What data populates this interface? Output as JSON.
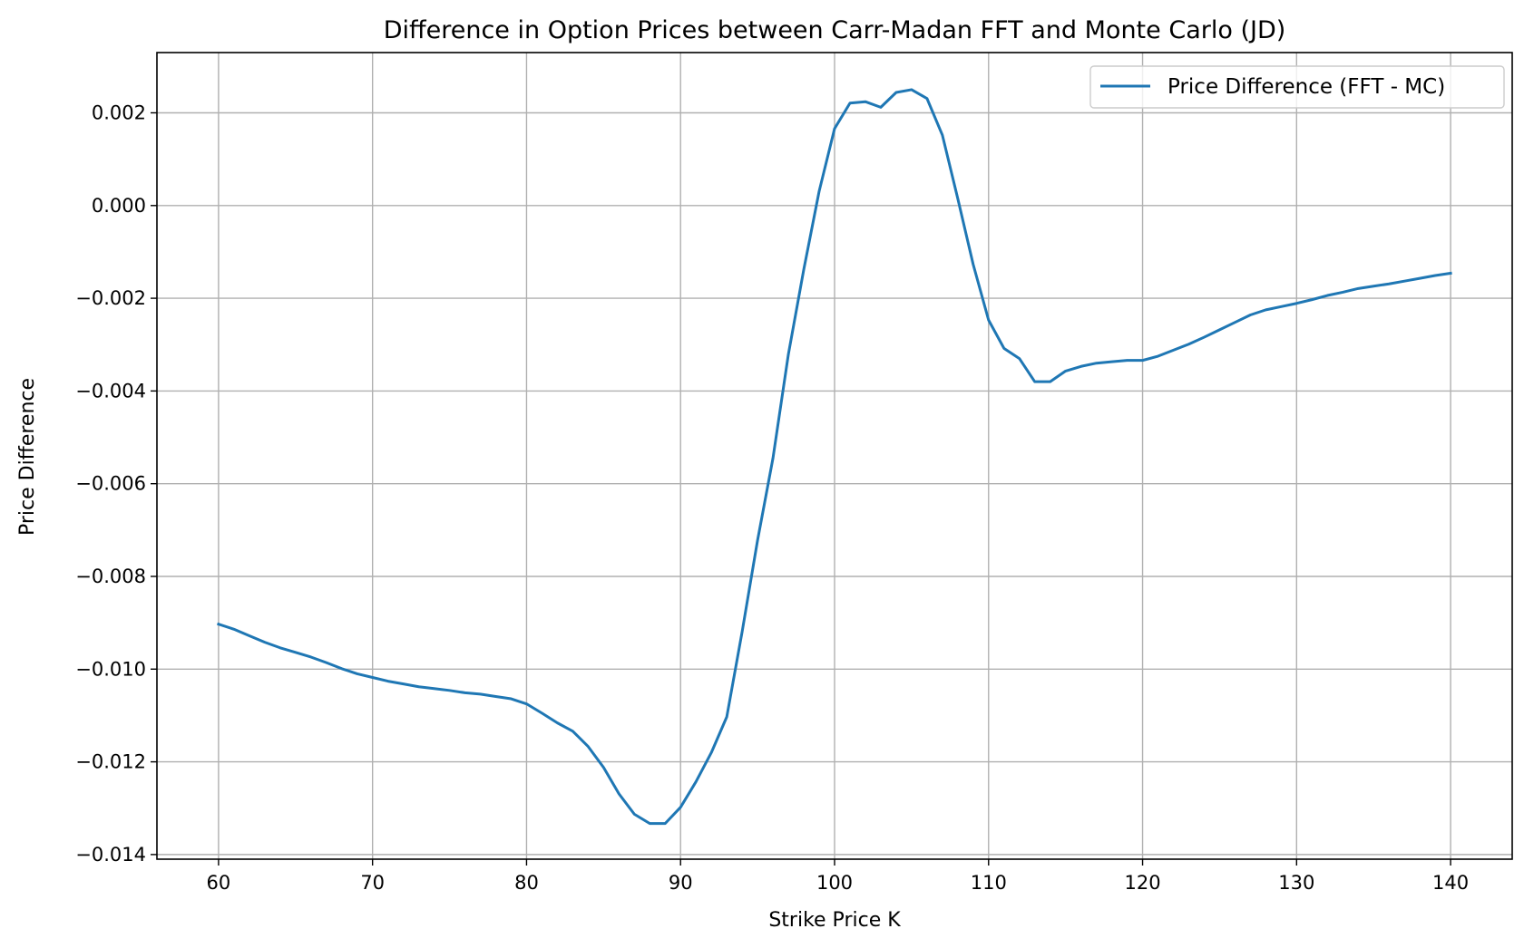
{
  "chart_data": {
    "type": "line",
    "title": "Difference in Option Prices between Carr-Madan FFT and Monte Carlo (JD)",
    "xlabel": "Strike Price K",
    "ylabel": "Price Difference",
    "xlim": [
      56,
      144
    ],
    "ylim": [
      -0.0141,
      0.0033
    ],
    "grid": true,
    "legend_position": "top-right",
    "xticks": [
      60,
      70,
      80,
      90,
      100,
      110,
      120,
      130,
      140
    ],
    "xtick_labels": [
      "60",
      "70",
      "80",
      "90",
      "100",
      "110",
      "120",
      "130",
      "140"
    ],
    "yticks": [
      0.002,
      0.0,
      -0.002,
      -0.004,
      -0.006,
      -0.008,
      -0.01,
      -0.012,
      -0.014
    ],
    "ytick_labels": [
      "0.002",
      "0.000",
      "−0.002",
      "−0.004",
      "−0.006",
      "−0.008",
      "−0.010",
      "−0.012",
      "−0.014"
    ],
    "series": [
      {
        "name": "Price Difference (FFT - MC)",
        "color": "#1f77b4",
        "x": [
          60,
          61,
          62,
          63,
          64,
          65,
          66,
          67,
          68,
          69,
          70,
          71,
          72,
          73,
          74,
          75,
          76,
          77,
          78,
          79,
          80,
          81,
          82,
          83,
          84,
          85,
          86,
          87,
          88,
          89,
          90,
          91,
          92,
          93,
          94,
          95,
          96,
          97,
          98,
          99,
          100,
          101,
          102,
          103,
          104,
          105,
          106,
          107,
          108,
          109,
          110,
          111,
          112,
          113,
          114,
          115,
          116,
          117,
          118,
          119,
          120,
          121,
          122,
          123,
          124,
          125,
          126,
          127,
          128,
          129,
          130,
          131,
          132,
          133,
          134,
          135,
          136,
          137,
          138,
          139,
          140
        ],
        "y": [
          -0.00903,
          -0.00914,
          -0.00928,
          -0.00942,
          -0.00954,
          -0.00964,
          -0.00974,
          -0.00986,
          -0.00999,
          -0.0101,
          -0.01018,
          -0.01026,
          -0.01032,
          -0.01038,
          -0.01042,
          -0.01046,
          -0.01051,
          -0.01054,
          -0.01059,
          -0.01064,
          -0.01075,
          -0.01095,
          -0.01116,
          -0.01134,
          -0.01167,
          -0.01212,
          -0.01269,
          -0.01313,
          -0.01333,
          -0.01333,
          -0.01298,
          -0.01243,
          -0.0118,
          -0.01103,
          -0.00919,
          -0.00722,
          -0.00545,
          -0.00321,
          -0.00138,
          0.00031,
          0.00166,
          0.00221,
          0.00224,
          0.00212,
          0.00244,
          0.0025,
          0.00231,
          0.00152,
          0.00015,
          -0.00127,
          -0.00247,
          -0.00308,
          -0.0033,
          -0.0038,
          -0.0038,
          -0.00357,
          -0.00347,
          -0.0034,
          -0.00337,
          -0.00334,
          -0.00334,
          -0.00325,
          -0.00312,
          -0.00299,
          -0.00284,
          -0.00268,
          -0.00252,
          -0.00236,
          -0.00225,
          -0.00218,
          -0.00211,
          -0.00203,
          -0.00194,
          -0.00187,
          -0.00179,
          -0.00174,
          -0.00169,
          -0.00163,
          -0.00157,
          -0.00151,
          -0.00146
        ]
      }
    ]
  }
}
